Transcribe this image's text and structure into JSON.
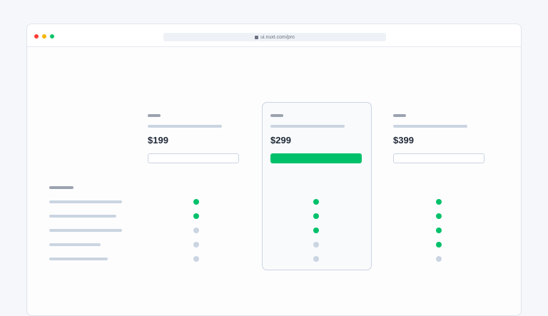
{
  "browser": {
    "url": "ui.nuxt.com/pro",
    "traffic_lights": [
      "#ff3b30",
      "#f5b400",
      "#10b981"
    ]
  },
  "colors": {
    "accent": "#00c16a",
    "included": "#00c16a",
    "excluded": "#cbd5e1"
  },
  "plans": [
    {
      "price": "$199",
      "highlighted": false,
      "features": [
        true,
        true,
        false,
        false,
        false
      ]
    },
    {
      "price": "$299",
      "highlighted": true,
      "features": [
        true,
        true,
        true,
        false,
        false
      ]
    },
    {
      "price": "$399",
      "highlighted": false,
      "features": [
        true,
        true,
        true,
        true,
        false
      ]
    }
  ],
  "feature_rows": 5
}
